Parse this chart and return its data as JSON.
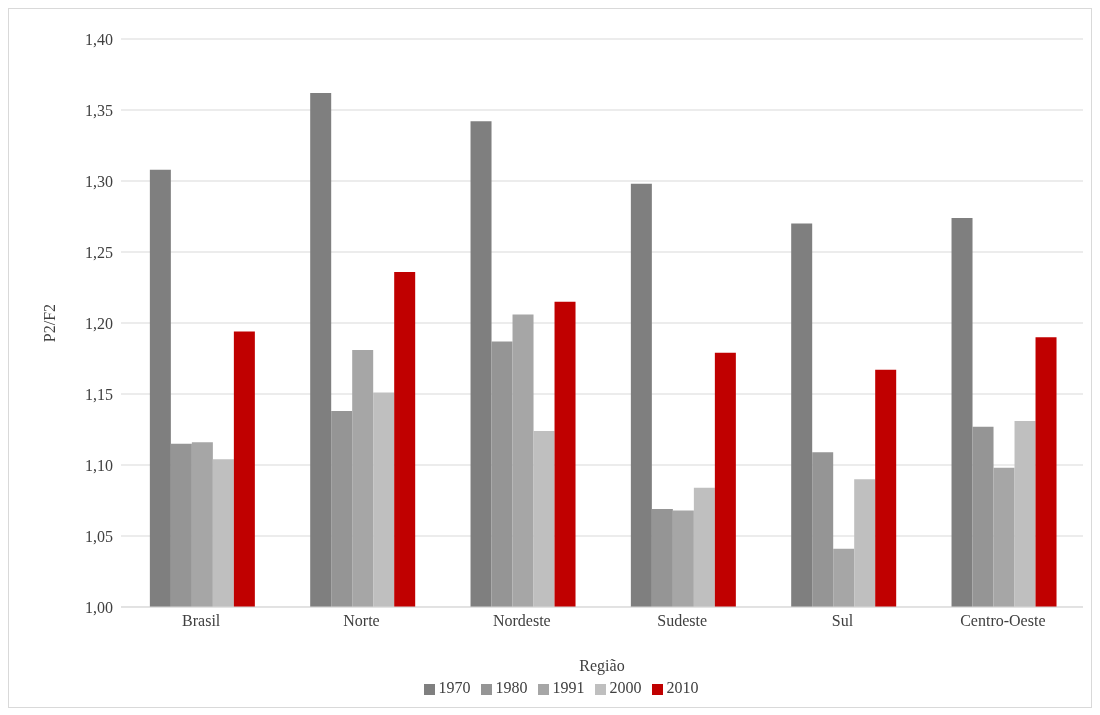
{
  "chart_data": {
    "type": "bar",
    "xlabel": "Região",
    "ylabel": "P2/F2",
    "categories": [
      "Brasil",
      "Norte",
      "Nordeste",
      "Sudeste",
      "Sul",
      "Centro-Oeste"
    ],
    "series": [
      {
        "name": "1970",
        "color": "#7f7f7f",
        "values": [
          1.308,
          1.362,
          1.342,
          1.298,
          1.27,
          1.274
        ]
      },
      {
        "name": "1980",
        "color": "#959595",
        "values": [
          1.115,
          1.138,
          1.187,
          1.069,
          1.109,
          1.127
        ]
      },
      {
        "name": "1991",
        "color": "#a6a6a6",
        "values": [
          1.116,
          1.181,
          1.206,
          1.068,
          1.041,
          1.098
        ]
      },
      {
        "name": "2000",
        "color": "#bfbfbf",
        "values": [
          1.104,
          1.151,
          1.124,
          1.084,
          1.09,
          1.131
        ]
      },
      {
        "name": "2010",
        "color": "#c00000",
        "values": [
          1.194,
          1.236,
          1.215,
          1.179,
          1.167,
          1.19
        ]
      }
    ],
    "ylim": [
      1.0,
      1.4
    ],
    "yticks": [
      {
        "value": 1.0,
        "label": "1,00"
      },
      {
        "value": 1.05,
        "label": "1,05"
      },
      {
        "value": 1.1,
        "label": "1,10"
      },
      {
        "value": 1.15,
        "label": "1,15"
      },
      {
        "value": 1.2,
        "label": "1,20"
      },
      {
        "value": 1.25,
        "label": "1,25"
      },
      {
        "value": 1.3,
        "label": "1,30"
      },
      {
        "value": 1.35,
        "label": "1,35"
      },
      {
        "value": 1.4,
        "label": "1,40"
      }
    ],
    "grid": "y",
    "legend": "bottom"
  }
}
